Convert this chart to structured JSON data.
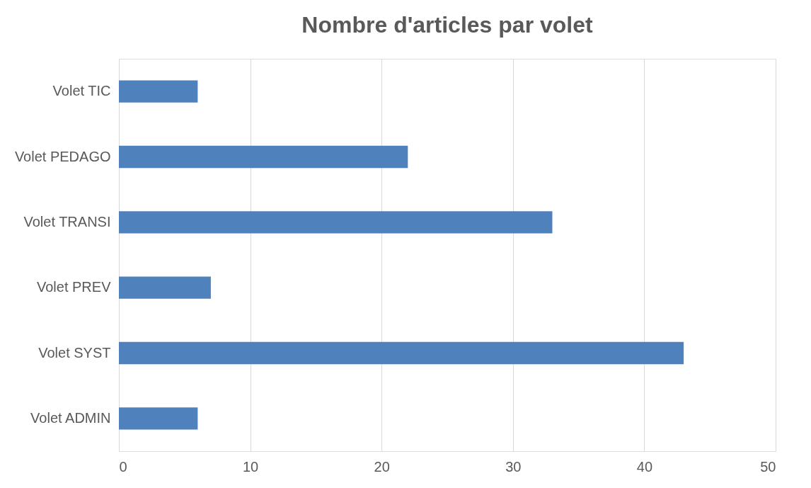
{
  "chart_data": {
    "type": "bar",
    "orientation": "horizontal",
    "title": "Nombre d'articles par volet",
    "categories": [
      "Volet TIC",
      "Volet PEDAGO",
      "Volet TRANSI",
      "Volet PREV",
      "Volet SYST",
      "Volet ADMIN"
    ],
    "values": [
      6,
      22,
      33,
      7,
      43,
      6
    ],
    "color": "#4f81bd",
    "xlim": [
      0,
      50
    ],
    "xticks": [
      0,
      10,
      20,
      30,
      40,
      50
    ],
    "grid": "x"
  }
}
